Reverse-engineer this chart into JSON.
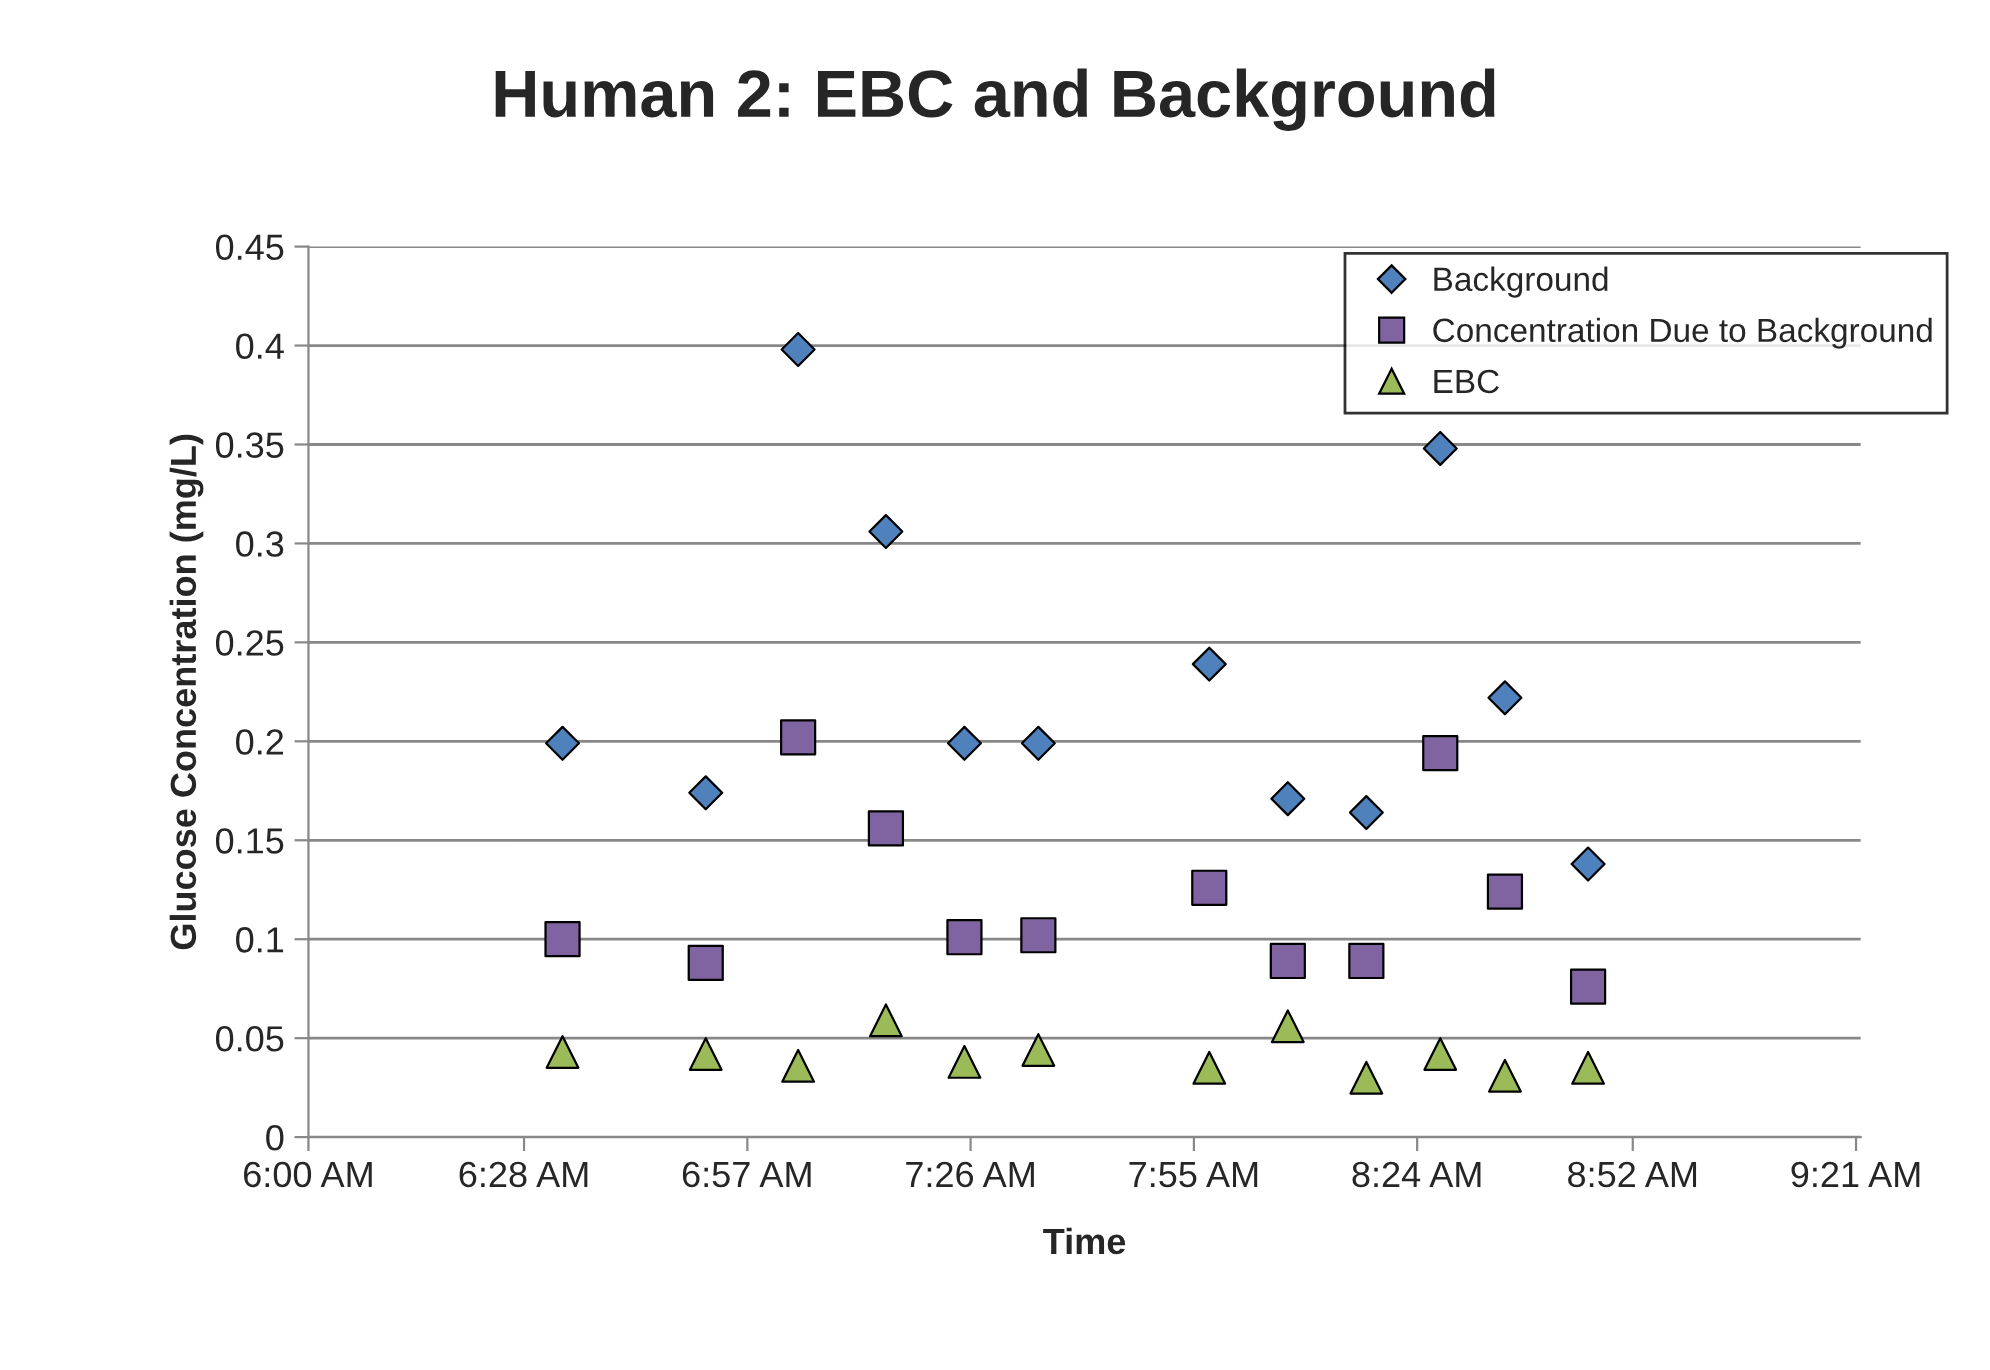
{
  "chart_data": {
    "type": "scatter",
    "title": "Human 2: EBC and Background",
    "xlabel": "Time",
    "ylabel": "Glucose Concentration (mg/L)",
    "x": [
      6.55,
      6.86,
      7.06,
      7.25,
      7.42,
      7.58,
      7.95,
      8.12,
      8.29,
      8.45,
      8.59,
      8.77
    ],
    "series": [
      {
        "name": "Background",
        "color": "#4f81bd",
        "marker": "diamond",
        "values": [
          0.199,
          0.174,
          0.398,
          0.306,
          0.199,
          0.199,
          0.239,
          0.171,
          0.164,
          0.348,
          0.222,
          0.138
        ]
      },
      {
        "name": "Concentration Due to Background",
        "color": "#8064a2",
        "marker": "square",
        "values": [
          0.1,
          0.088,
          0.202,
          0.156,
          0.101,
          0.102,
          0.126,
          0.089,
          0.089,
          0.194,
          0.124,
          0.076
        ]
      },
      {
        "name": "EBC",
        "color": "#9bbb59",
        "marker": "triangle",
        "values": [
          0.043,
          0.042,
          0.036,
          0.059,
          0.038,
          0.044,
          0.035,
          0.056,
          0.03,
          0.042,
          0.031,
          0.035
        ]
      }
    ],
    "xlim": [
      6.0,
      9.36
    ],
    "xticks": [
      {
        "value": 6.0,
        "label": "6:00 AM"
      },
      {
        "value": 6.4667,
        "label": "6:28 AM"
      },
      {
        "value": 6.95,
        "label": "6:57 AM"
      },
      {
        "value": 7.4333,
        "label": "7:26 AM"
      },
      {
        "value": 7.9167,
        "label": "7:55 AM"
      },
      {
        "value": 8.4,
        "label": "8:24 AM"
      },
      {
        "value": 8.8667,
        "label": "8:52 AM"
      },
      {
        "value": 9.35,
        "label": "9:21 AM"
      }
    ],
    "ylim": [
      0,
      0.45
    ],
    "yticks": [
      0,
      0.05,
      0.1,
      0.15,
      0.2,
      0.25,
      0.3,
      0.35,
      0.4,
      0.45
    ],
    "grid": "y",
    "legend": "top right"
  }
}
